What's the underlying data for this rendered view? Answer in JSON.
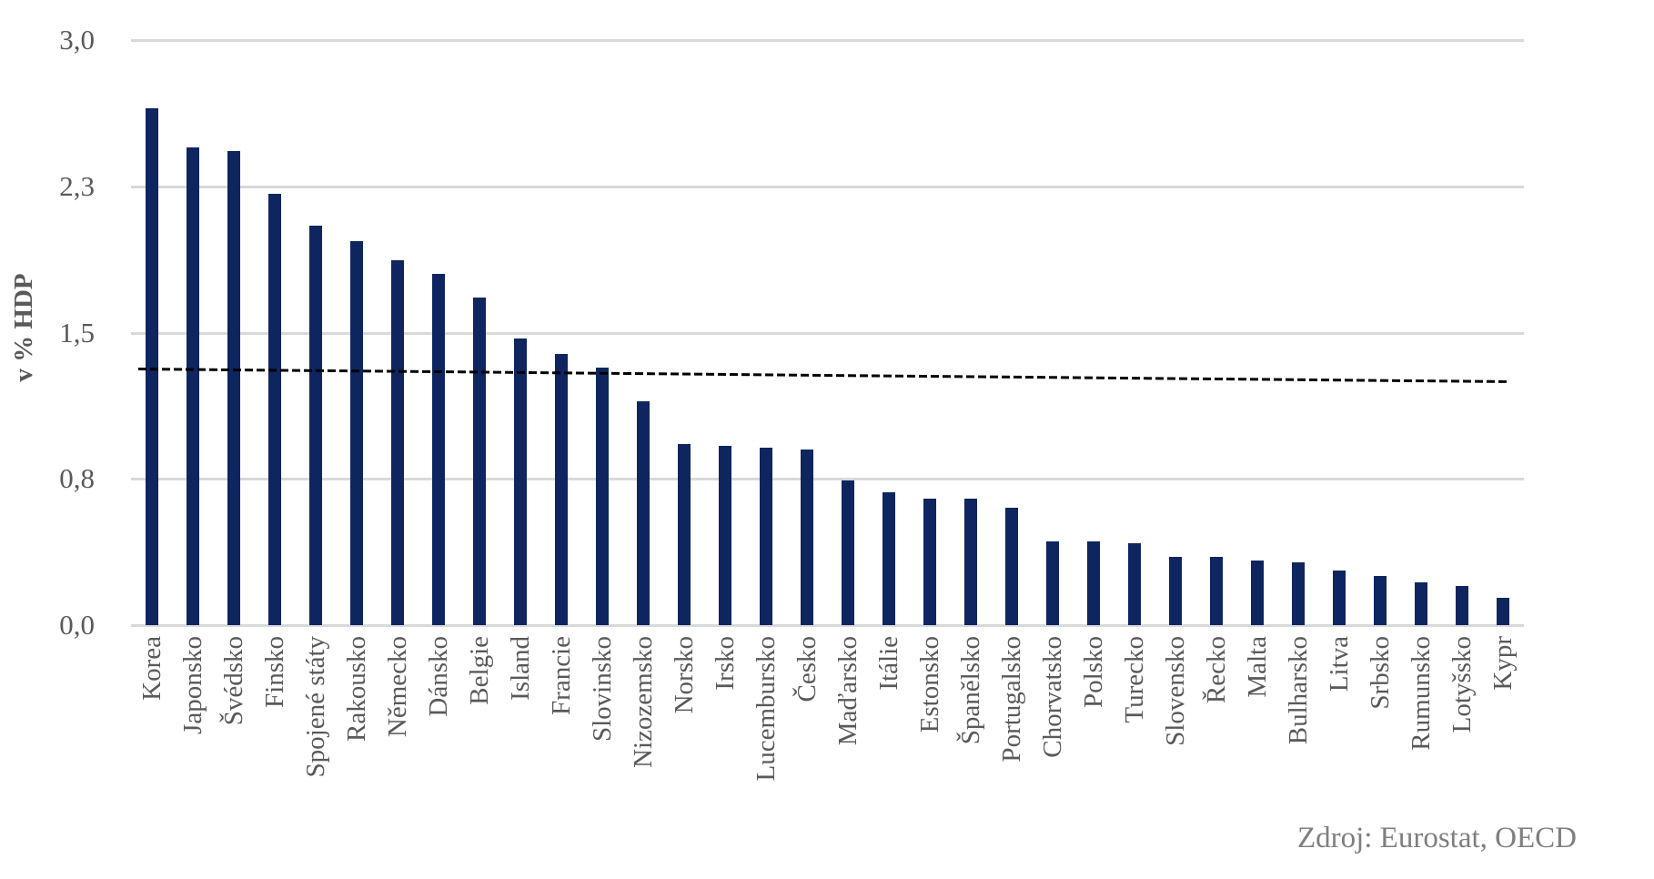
{
  "chart_data": {
    "type": "bar",
    "title": "",
    "xlabel": "",
    "ylabel": "v % HDP",
    "source": "Zdroj: Eurostat, OECD",
    "ylim": [
      0,
      3.0
    ],
    "grid": true,
    "gridline_color": "#d9d9d9",
    "bar_color": "#0f2560",
    "label_color": "#595959",
    "y_ticks": [
      {
        "value": 0,
        "label": "0,0"
      },
      {
        "value": 0.75,
        "label": "0,8"
      },
      {
        "value": 1.5,
        "label": "1,5"
      },
      {
        "value": 2.25,
        "label": "2,3"
      },
      {
        "value": 3.0,
        "label": "3,0"
      }
    ],
    "reference_line": {
      "value": 1.29,
      "style": "dashed",
      "color": "#000000"
    },
    "categories": [
      "Korea",
      "Japonsko",
      "Švédsko",
      "Finsko",
      "Spojené státy",
      "Rakousko",
      "Německo",
      "Dánsko",
      "Belgie",
      "Island",
      "Francie",
      "Slovinsko",
      "Nizozemsko",
      "Norsko",
      "Irsko",
      "Lucembursko",
      "Česko",
      "Maďarsko",
      "Itálie",
      "Estonsko",
      "Španělsko",
      "Portugalsko",
      "Chorvatsko",
      "Polsko",
      "Turecko",
      "Slovensko",
      "Řecko",
      "Malta",
      "Bulharsko",
      "Litva",
      "Srbsko",
      "Rumunsko",
      "Lotyšsko",
      "Kypr"
    ],
    "values": [
      2.65,
      2.45,
      2.43,
      2.21,
      2.05,
      1.97,
      1.87,
      1.8,
      1.68,
      1.47,
      1.39,
      1.32,
      1.15,
      0.93,
      0.92,
      0.91,
      0.9,
      0.74,
      0.68,
      0.65,
      0.65,
      0.6,
      0.43,
      0.43,
      0.42,
      0.35,
      0.35,
      0.33,
      0.32,
      0.28,
      0.25,
      0.22,
      0.2,
      0.14
    ]
  }
}
